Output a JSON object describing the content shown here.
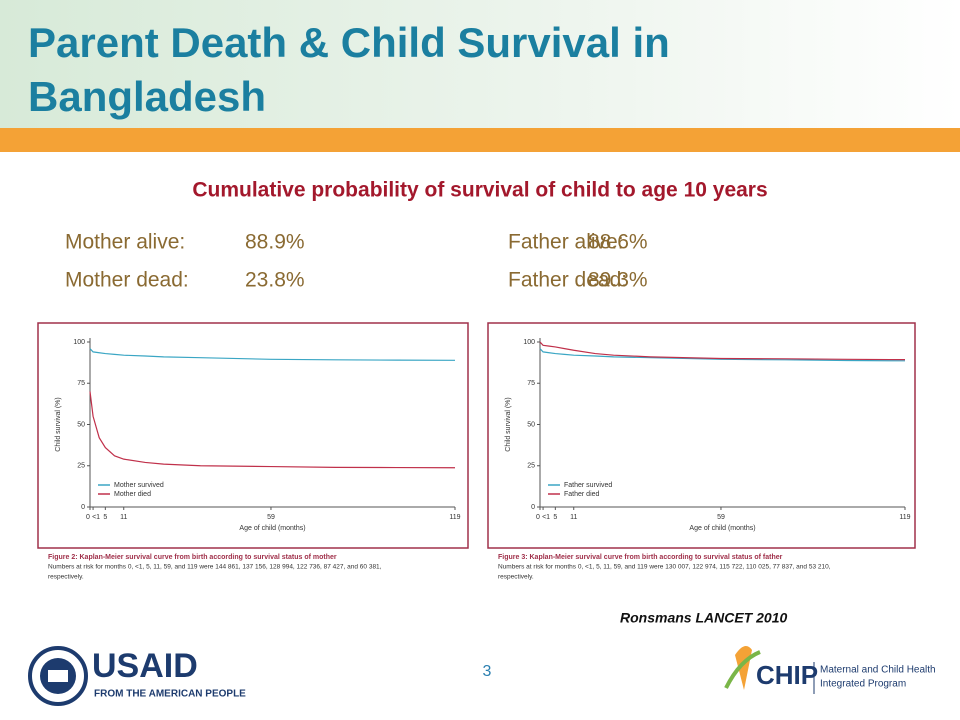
{
  "header": {
    "title_lines": [
      "Parent Death & Child Survival in",
      "Bangladesh"
    ]
  },
  "subtitle": "Cumulative probability of survival of child to age 10 years",
  "stats": [
    {
      "label": "Mother alive:",
      "value": "88.9%"
    },
    {
      "label": "Mother dead:",
      "value": "23.8%"
    },
    {
      "label": "Father alive:",
      "value": "88.6%"
    },
    {
      "label": "Father dead:",
      "value": "89.3%"
    }
  ],
  "chart_data": [
    {
      "type": "line",
      "xlabel": "Age of child (months)",
      "ylabel": "Child survival (%)",
      "x": [
        0,
        1,
        3,
        5,
        8,
        11,
        18,
        24,
        36,
        59,
        80,
        100,
        119
      ],
      "series": [
        {
          "name": "Mother survived",
          "color": "#3aa6c4",
          "values": [
            96,
            94,
            93.5,
            93,
            92.5,
            92,
            91.5,
            91,
            90.5,
            89.5,
            89.2,
            89,
            88.9
          ]
        },
        {
          "name": "Mother died",
          "color": "#c0304a",
          "values": [
            70,
            55,
            42,
            36,
            31,
            29,
            27,
            26,
            25,
            24.5,
            24,
            23.9,
            23.8
          ]
        }
      ],
      "xlim": [
        0,
        119
      ],
      "xticks": [
        0,
        {
          "value": 1,
          "label": "<1"
        },
        5,
        11,
        59,
        119
      ],
      "ylim": [
        0,
        100
      ],
      "yticks": [
        0,
        25,
        50,
        75,
        100
      ],
      "caption": "Figure 2: Kaplan-Meier survival curve from birth according to survival status of mother",
      "note_lines": [
        "Numbers at risk for months 0, <1, 5, 11, 59, and 119 were 144 861, 137 156, 128 994, 122 736, 87 427, and 60 381,",
        "respectively."
      ]
    },
    {
      "type": "line",
      "xlabel": "Age of child (months)",
      "ylabel": "Child survival (%)",
      "x": [
        0,
        1,
        3,
        5,
        8,
        11,
        18,
        24,
        36,
        59,
        80,
        100,
        119
      ],
      "series": [
        {
          "name": "Father survived",
          "color": "#3aa6c4",
          "values": [
            96,
            94,
            93.5,
            93,
            92.5,
            92,
            91.5,
            91,
            90.5,
            89.5,
            89.2,
            88.8,
            88.6
          ]
        },
        {
          "name": "Father died",
          "color": "#c0304a",
          "values": [
            100,
            98,
            97.5,
            97,
            96,
            95,
            93,
            92,
            91,
            90,
            89.8,
            89.5,
            89.3
          ]
        }
      ],
      "xlim": [
        0,
        119
      ],
      "xticks": [
        0,
        {
          "value": 1,
          "label": "<1"
        },
        5,
        11,
        59,
        119
      ],
      "ylim": [
        0,
        100
      ],
      "yticks": [
        0,
        25,
        50,
        75,
        100
      ],
      "caption": "Figure 3: Kaplan-Meier survival curve from birth according to survival status of father",
      "note_lines": [
        "Numbers at risk for months 0, <1, 5, 11, 59, and 119 were 130 007, 122 974, 115 722, 110 025, 77 837, and 53 210,",
        "respectively."
      ]
    }
  ],
  "citation": "Ronsmans LANCET 2010",
  "page_number": "3",
  "logos": {
    "usaid": {
      "name": "USAID",
      "tagline": "FROM THE AMERICAN PEOPLE"
    },
    "mchip": {
      "name": "CHIP",
      "lines": [
        "Maternal and Child Health",
        "Integrated Program"
      ]
    }
  }
}
